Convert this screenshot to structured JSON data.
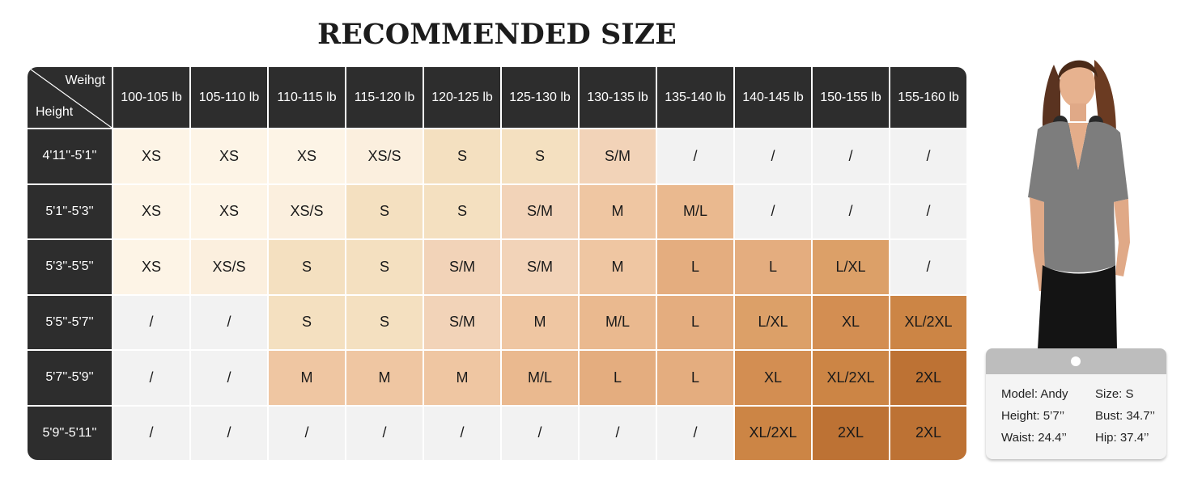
{
  "title": "RECOMMENDED SIZE",
  "corner": {
    "weight": "Weihgt",
    "height": "Height"
  },
  "weights": [
    "100-105 lb",
    "105-110 lb",
    "110-115 lb",
    "115-120 lb",
    "120-125 lb",
    "125-130 lb",
    "130-135 lb",
    "135-140 lb",
    "140-145 lb",
    "150-155 lb",
    "155-160 lb"
  ],
  "heights": [
    "4'11''-5'1''",
    "5'1''-5'3''",
    "5'3''-5'5''",
    "5'5''-5'7''",
    "5'7''-5'9''",
    "5'9''-5'11''"
  ],
  "sizes": [
    [
      "XS",
      "XS",
      "XS",
      "XS/S",
      "S",
      "S",
      "S/M",
      "/",
      "/",
      "/",
      "/"
    ],
    [
      "XS",
      "XS",
      "XS/S",
      "S",
      "S",
      "S/M",
      "M",
      "M/L",
      "/",
      "/",
      "/"
    ],
    [
      "XS",
      "XS/S",
      "S",
      "S",
      "S/M",
      "S/M",
      "M",
      "L",
      "L",
      "L/XL",
      "/"
    ],
    [
      "/",
      "/",
      "S",
      "S",
      "S/M",
      "M",
      "M/L",
      "L",
      "L/XL",
      "XL",
      "XL/2XL"
    ],
    [
      "/",
      "/",
      "M",
      "M",
      "M",
      "M/L",
      "L",
      "L",
      "XL",
      "XL/2XL",
      "2XL"
    ],
    [
      "/",
      "/",
      "/",
      "/",
      "/",
      "/",
      "/",
      "/",
      "XL/2XL",
      "2XL",
      "2XL"
    ]
  ],
  "size_colors": {
    "XS": "#fdf4e6",
    "XS/S": "#fbefde",
    "S": "#f4e0c0",
    "S/M": "#f2d3b8",
    "M": "#efc6a2",
    "M/L": "#eab98f",
    "L": "#e4ad7f",
    "L/XL": "#dca068",
    "XL": "#d38e52",
    "XL/2XL": "#cc8545",
    "2XL": "#bd7234",
    "/": "#f2f2f2"
  },
  "model": {
    "name": "Model: Andy",
    "size": "Size: S",
    "height": "Height: 5’7’’",
    "bust": "Bust: 34.7’’",
    "waist": "Waist: 24.4’’",
    "hip": "Hip: 37.4’’"
  }
}
